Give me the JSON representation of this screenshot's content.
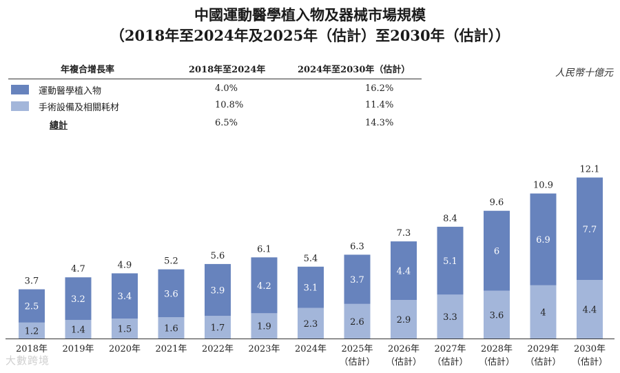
{
  "title_line1": "中國運動醫學植入物及器械市場規模",
  "title_line2": "（2018年至2024年及2025年（估計）至2030年（估計））",
  "unit": "人民幣十億元",
  "cagr_table": {
    "header_label": "年複合增長率",
    "header_col1": "2018年至2024年",
    "header_col2": "2024年至2030年（估計）",
    "rows": [
      {
        "label": "運動醫學植入物",
        "v1": "4.0%",
        "v2": "16.2%",
        "color": "#6783bd"
      },
      {
        "label": "手術設備及相關耗材",
        "v1": "10.8%",
        "v2": "11.4%",
        "color": "#a3b6da"
      },
      {
        "label": "總計",
        "v1": "6.5%",
        "v2": "14.3%"
      }
    ]
  },
  "watermark": "大數跨境",
  "chart_data": {
    "type": "bar",
    "stacked": true,
    "categories": [
      "2018年",
      "2019年",
      "2020年",
      "2021年",
      "2022年",
      "2023年",
      "2024年",
      "2025年",
      "2026年",
      "2027年",
      "2028年",
      "2029年",
      "2030年"
    ],
    "estimate_flags": [
      false,
      false,
      false,
      false,
      false,
      false,
      false,
      true,
      true,
      true,
      true,
      true,
      true
    ],
    "estimate_label": "（估計）",
    "series": [
      {
        "name": "手術設備及相關耗材",
        "color": "#a3b6da",
        "values": [
          1.2,
          1.4,
          1.5,
          1.6,
          1.7,
          1.9,
          2.3,
          2.6,
          2.9,
          3.3,
          3.6,
          4.0,
          4.4
        ]
      },
      {
        "name": "運動醫學植入物",
        "color": "#6783bd",
        "values": [
          2.5,
          3.2,
          3.4,
          3.6,
          3.9,
          4.2,
          3.1,
          3.7,
          4.4,
          5.1,
          6.0,
          6.9,
          7.7
        ]
      }
    ],
    "totals": [
      3.7,
      4.7,
      4.9,
      5.2,
      5.6,
      6.1,
      5.4,
      6.3,
      7.3,
      8.4,
      9.6,
      10.9,
      12.1
    ],
    "ylim": [
      0,
      12.1
    ]
  }
}
